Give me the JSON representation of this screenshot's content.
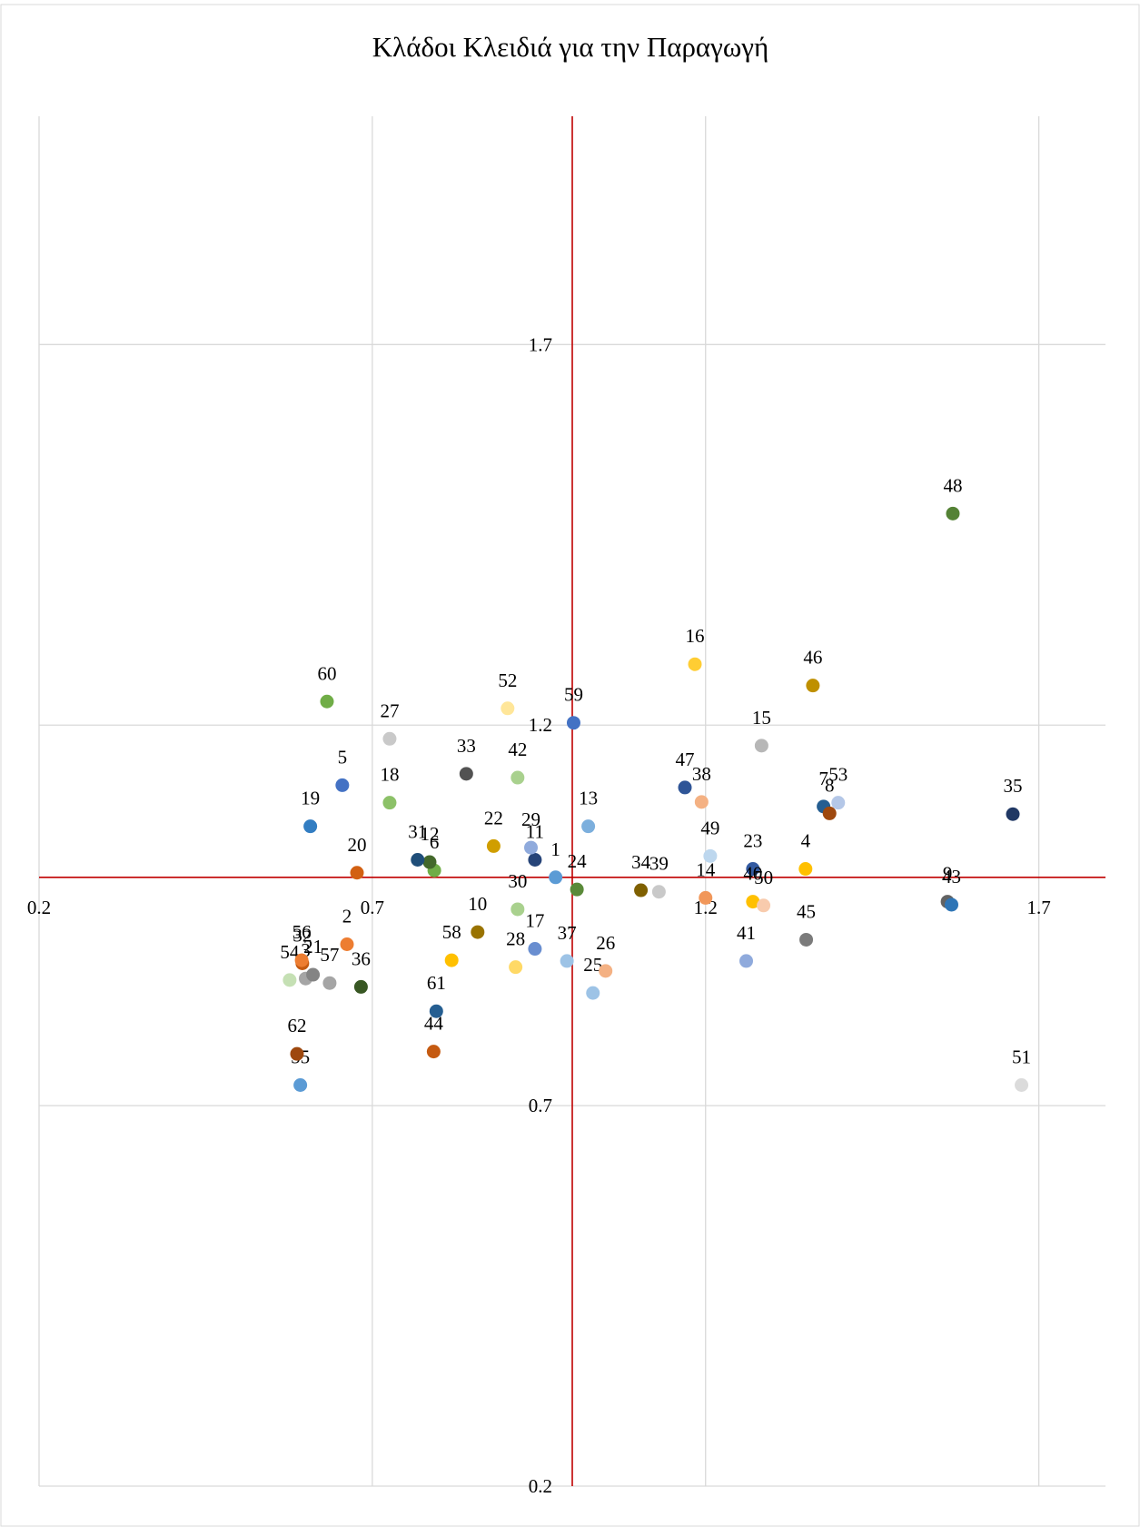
{
  "chart_data": {
    "type": "scatter",
    "title": "Κλάδοι Κλειδιά για την Παραγωγή",
    "labels": [
      "1",
      "2",
      "3",
      "4",
      "5",
      "6",
      "7",
      "8",
      "9",
      "10",
      "11",
      "12",
      "13",
      "14",
      "15",
      "16",
      "17",
      "18",
      "19",
      "20",
      "21",
      "22",
      "23",
      "24",
      "25",
      "26",
      "27",
      "28",
      "29",
      "30",
      "31",
      "32",
      "33",
      "34",
      "35",
      "36",
      "37",
      "38",
      "39",
      "40",
      "41",
      "42",
      "43",
      "44",
      "45",
      "46",
      "47",
      "48",
      "49",
      "50",
      "51",
      "52",
      "53",
      "54",
      "55",
      "56",
      "57",
      "58",
      "59",
      "60",
      "61",
      "62"
    ],
    "x": [
      0.975,
      0.662,
      0.6,
      1.35,
      0.655,
      0.793,
      1.377,
      1.386,
      1.563,
      0.858,
      0.944,
      0.786,
      1.024,
      1.2,
      1.284,
      1.184,
      0.944,
      0.726,
      0.607,
      0.677,
      0.611,
      0.882,
      1.271,
      1.007,
      1.031,
      1.05,
      0.726,
      0.915,
      0.938,
      0.918,
      0.768,
      0.595,
      0.841,
      1.103,
      1.661,
      0.683,
      0.992,
      1.194,
      1.13,
      1.271,
      1.261,
      0.918,
      1.569,
      0.792,
      1.351,
      1.361,
      1.169,
      1.571,
      1.207,
      1.287,
      1.674,
      0.903,
      1.399,
      0.576,
      0.592,
      0.594,
      0.636,
      0.819,
      1.002,
      0.632,
      0.796,
      0.587
    ],
    "values": [
      1.0,
      0.912,
      0.867,
      1.011,
      1.121,
      1.009,
      1.093,
      1.084,
      0.968,
      0.928,
      1.023,
      1.02,
      1.067,
      0.973,
      1.173,
      1.28,
      0.906,
      1.098,
      1.067,
      1.006,
      0.872,
      1.041,
      1.011,
      0.984,
      0.848,
      0.877,
      1.182,
      0.882,
      1.039,
      0.958,
      1.023,
      0.887,
      1.136,
      0.983,
      1.083,
      0.856,
      0.89,
      1.099,
      0.981,
      0.968,
      0.89,
      1.131,
      0.964,
      0.771,
      0.918,
      1.252,
      1.118,
      1.478,
      1.028,
      0.963,
      0.727,
      1.222,
      1.098,
      0.865,
      0.727,
      0.891,
      0.861,
      0.891,
      1.203,
      1.231,
      0.824,
      0.768
    ],
    "colors": [
      "#5b9bd5",
      "#ed7d31",
      "#a5a5a5",
      "#ffc000",
      "#4472c4",
      "#70ad47",
      "#255e91",
      "#9e480e",
      "#636363",
      "#997300",
      "#264478",
      "#43682b",
      "#7cafdd",
      "#f1975a",
      "#b7b7b7",
      "#ffcd33",
      "#698ed0",
      "#8cc168",
      "#327dc2",
      "#d26012",
      "#848484",
      "#d09e00",
      "#335aa1",
      "#5a8a39",
      "#9dc3e6",
      "#f4b183",
      "#c9c9c9",
      "#ffd966",
      "#8faadc",
      "#a9d18e",
      "#1f4e79",
      "#c55a11",
      "#525252",
      "#7f6000",
      "#203864",
      "#385723",
      "#9dc3e6",
      "#f4b183",
      "#c9c9c9",
      "#ffc000",
      "#8faadc",
      "#a9d18e",
      "#2e75b6",
      "#c55a11",
      "#7b7b7b",
      "#bf9000",
      "#2f5597",
      "#548235",
      "#bdd7ee",
      "#f8cbad",
      "#dbdbdb",
      "#ffe699",
      "#b4c7e7",
      "#c5e0b4",
      "#5b9bd5",
      "#ed7d31",
      "#a5a5a5",
      "#ffc000",
      "#4472c4",
      "#70ad47",
      "#255e91",
      "#9e480e"
    ],
    "xlim": [
      0.2,
      1.8
    ],
    "ylim": [
      0.2,
      2.0
    ],
    "xticks": [
      0.2,
      0.7,
      1.2,
      1.7
    ],
    "yticks": [
      0.2,
      0.7,
      1.2,
      1.7
    ],
    "x_axis_crosses": 1,
    "y_axis_crosses": 1,
    "axis_color": "#c00000",
    "grid": true
  }
}
